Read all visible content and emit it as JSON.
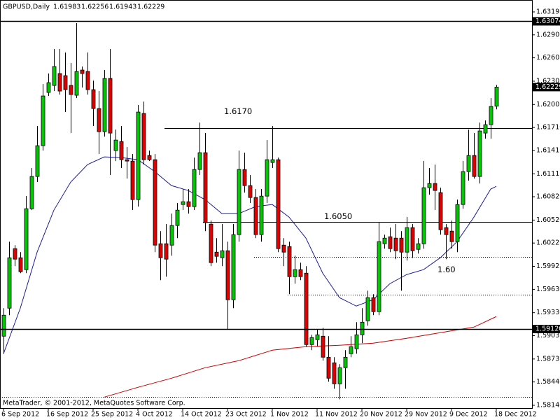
{
  "chart_data": {
    "type": "candlestick",
    "symbol": "GBPUSD,Daily",
    "footer": "MetaTrader, © 2001-2012, MetaQuotes Software Corp.",
    "categories": [
      "6 Sep 2012",
      null,
      null,
      null,
      null,
      null,
      null,
      null,
      "16 Sep 2012",
      null,
      null,
      null,
      null,
      null,
      null,
      null,
      "25 Sep 2012",
      null,
      null,
      null,
      null,
      null,
      null,
      null,
      "4 Oct 2012",
      null,
      null,
      null,
      null,
      null,
      null,
      null,
      "14 Oct 2012",
      null,
      null,
      null,
      null,
      null,
      null,
      null,
      "23 Oct 2012",
      null,
      null,
      null,
      null,
      null,
      null,
      null,
      "1 Nov 2012",
      null,
      null,
      null,
      null,
      null,
      null,
      null,
      "11 Nov 2012",
      null,
      null,
      null,
      null,
      null,
      null,
      null,
      "20 Nov 2012",
      null,
      null,
      null,
      null,
      null,
      null,
      null,
      "29 Nov 2012",
      null,
      null,
      null,
      null,
      null,
      null,
      null,
      "9 Dec 2012",
      null,
      null,
      null,
      null,
      null,
      null,
      null,
      "18 Dec 2012"
    ],
    "open": [
      1.59028,
      1.59388,
      1.60153,
      1.60036,
      1.59883,
      1.60666,
      1.6108,
      1.61476,
      1.6216,
      1.6225,
      1.62403,
      1.62376,
      1.6225,
      1.62124,
      1.62448,
      1.6243,
      1.62196,
      1.61953,
      1.61656,
      1.6234,
      1.61413,
      1.6153,
      1.61296,
      1.61278,
      1.60783,
      1.6189,
      1.6135,
      1.61296,
      1.60216,
      1.60216,
      1.60198,
      1.6045,
      1.6072,
      1.60756,
      1.60693,
      1.6117,
      1.61386,
      1.60468,
      1.60108,
      1.60036,
      1.60126,
      1.59496,
      1.60333,
      1.6117,
      1.60963,
      1.6081,
      1.60333,
      1.60828,
      1.6126,
      1.61296,
      1.60198,
      1.6018,
      1.59793,
      1.59883,
      1.59838,
      1.5892,
      1.58983,
      1.59028,
      1.58758,
      1.58686,
      1.58416,
      1.58623,
      1.58803,
      1.58866,
      1.59046,
      1.59226,
      1.59523,
      1.59343,
      1.60216,
      1.60306,
      1.60288,
      1.60288,
      1.60108,
      1.60423,
      1.60144,
      1.60216,
      1.60936,
      1.6099,
      1.60873,
      1.60423,
      1.60378,
      1.60243,
      1.6072,
      1.61143,
      1.6135,
      1.6108,
      1.61638,
      1.61746,
      1.61983
    ],
    "high": [
      1.59388,
      1.60243,
      1.60198,
      1.60108,
      1.60828,
      1.61188,
      1.61728,
      1.62268,
      1.62403,
      1.62718,
      1.62718,
      1.62673,
      1.62538,
      1.63051,
      1.62493,
      1.62673,
      1.62313,
      1.62178,
      1.62448,
      1.62718,
      1.61683,
      1.61728,
      1.61458,
      1.61368,
      1.61998,
      1.62043,
      1.61413,
      1.61368,
      1.60378,
      1.60468,
      1.60603,
      1.60738,
      1.60918,
      1.60918,
      1.61323,
      1.61773,
      1.61638,
      1.60513,
      1.60288,
      1.60468,
      1.60243,
      1.60468,
      1.61413,
      1.61386,
      1.61098,
      1.60918,
      1.60918,
      1.61548,
      1.61728,
      1.61323,
      1.60288,
      1.60243,
      1.60063,
      1.59973,
      1.59928,
      1.59046,
      1.59118,
      1.59136,
      1.59028,
      1.58758,
      1.58668,
      1.58848,
      1.59028,
      1.59208,
      1.59388,
      1.59613,
      1.59568,
      1.60486,
      1.60333,
      1.60423,
      1.60468,
      1.60378,
      1.60558,
      1.60468,
      1.60288,
      1.61278,
      1.61188,
      1.61233,
      1.60936,
      1.60468,
      1.60513,
      1.60783,
      1.61278,
      1.61683,
      1.61638,
      1.61773,
      1.618,
      1.62088,
      1.62256
    ],
    "low": [
      1.58803,
      1.59298,
      1.59928,
      1.59838,
      1.59838,
      1.60648,
      1.61008,
      1.61413,
      1.62115,
      1.62178,
      1.62133,
      1.61908,
      1.61638,
      1.62088,
      1.62223,
      1.62133,
      1.61728,
      1.61368,
      1.61593,
      1.61098,
      1.61278,
      1.61188,
      1.61053,
      1.60648,
      1.60693,
      1.61233,
      1.61278,
      1.60108,
      1.59748,
      1.59793,
      1.60063,
      1.60288,
      1.60648,
      1.60603,
      1.60648,
      1.61098,
      1.60378,
      1.59928,
      1.59973,
      1.59928,
      1.59118,
      1.59388,
      1.60243,
      1.60873,
      1.60738,
      1.60288,
      1.60243,
      1.60738,
      1.61188,
      1.60108,
      1.59928,
      1.59568,
      1.59703,
      1.59748,
      1.58893,
      1.58848,
      1.58893,
      1.58713,
      1.58443,
      1.58353,
      1.58218,
      1.58353,
      1.58758,
      1.58803,
      1.58938,
      1.59163,
      1.59298,
      1.59298,
      1.60153,
      1.60108,
      1.60018,
      1.59613,
      1.6,
      1.60036,
      1.6009,
      1.60153,
      1.60846,
      1.60648,
      1.60333,
      1.60018,
      1.60153,
      1.60108,
      1.60666,
      1.61026,
      1.61053,
      1.6099,
      1.61566,
      1.61566,
      1.61943
    ],
    "close": [
      1.59298,
      1.60036,
      1.60018,
      1.59856,
      1.60666,
      1.6108,
      1.61476,
      1.62115,
      1.62286,
      1.62493,
      1.62178,
      1.62196,
      1.62133,
      1.6243,
      1.62403,
      1.62196,
      1.61953,
      1.61656,
      1.6234,
      1.61638,
      1.61548,
      1.61296,
      1.61278,
      1.60783,
      1.61908,
      1.61296,
      1.61296,
      1.60198,
      1.60036,
      1.60018,
      1.6045,
      1.60648,
      1.60756,
      1.60693,
      1.6117,
      1.61386,
      1.60486,
      1.59973,
      1.60054,
      1.60126,
      1.59496,
      1.60333,
      1.6117,
      1.60963,
      1.6081,
      1.60333,
      1.60828,
      1.61296,
      1.61296,
      1.60153,
      1.60108,
      1.59793,
      1.59883,
      1.59793,
      1.5892,
      1.5901,
      1.59046,
      1.58758,
      1.58488,
      1.58416,
      1.58623,
      1.58758,
      1.58893,
      1.59046,
      1.59208,
      1.59523,
      1.59343,
      1.60243,
      1.60288,
      1.60153,
      1.60126,
      1.60108,
      1.60423,
      1.60126,
      1.60216,
      1.60936,
      1.6099,
      1.609,
      1.60396,
      1.60333,
      1.60243,
      1.6072,
      1.61143,
      1.6135,
      1.6108,
      1.61665,
      1.61746,
      1.6198,
      1.62229
    ],
    "moving_averages": [
      {
        "color": "#1c1c9c",
        "x": [
          0,
          3,
          6,
          9,
          12,
          15,
          18,
          21,
          24,
          27,
          30,
          33,
          36,
          39,
          42,
          45,
          48,
          51,
          54,
          57,
          60,
          63,
          66,
          69,
          72,
          75,
          78,
          81,
          84,
          87,
          88
        ],
        "values": [
          1.58803,
          1.59388,
          1.60108,
          1.60648,
          1.61008,
          1.61233,
          1.61332,
          1.61323,
          1.61296,
          1.61143,
          1.60963,
          1.609,
          1.60783,
          1.60603,
          1.60603,
          1.60693,
          1.6072,
          1.60558,
          1.60288,
          1.59838,
          1.59523,
          1.59415,
          1.59496,
          1.59703,
          1.5982,
          1.59883,
          1.60036,
          1.60243,
          1.60558,
          1.60918,
          1.60954
        ]
      },
      {
        "color": "#c80000",
        "x": [
          18,
          24,
          30,
          36,
          42,
          48,
          54,
          60,
          66,
          72,
          78,
          84,
          88
        ],
        "values": [
          1.58245,
          1.58371,
          1.58488,
          1.58623,
          1.58713,
          1.58848,
          1.58893,
          1.58911,
          1.58938,
          1.59001,
          1.59073,
          1.59145,
          1.5928
        ]
      }
    ],
    "price_levels": [
      1.63074,
      {
        "value": 1.5912,
        "label": "1.59120"
      }
    ],
    "trend_lines": [
      {
        "value": 1.617,
        "label": "1.6170"
      },
      {
        "value": 1.605,
        "label": "1.6050"
      }
    ],
    "dotted_levels": [
      {
        "value": 1.6005,
        "label": "1.60"
      },
      1.59559,
      1.58245
    ],
    "ylim": [
      1.58104,
      1.63348
    ],
    "yticks": [
      1.63195,
      {
        "value": 1.629,
        "label": "1.62900"
      },
      1.62605,
      1.62305,
      1.62005,
      {
        "value": 1.6171,
        "label": "1.61710"
      },
      1.61415,
      1.61115,
      {
        "value": 1.6082,
        "label": "1.60820"
      },
      {
        "value": 1.6052,
        "label": "1.60520"
      },
      1.60225,
      1.59925,
      {
        "value": 1.5963,
        "label": "1.59630"
      },
      {
        "value": 1.5933,
        "label": "1.59330"
      },
      1.59035,
      1.58735,
      {
        "value": 1.5844,
        "label": "1.58440"
      },
      {
        "value": 1.5814,
        "label": "1.58140"
      }
    ],
    "bull_color": "#00c800",
    "bear_color": "#e00000",
    "grid": false
  }
}
